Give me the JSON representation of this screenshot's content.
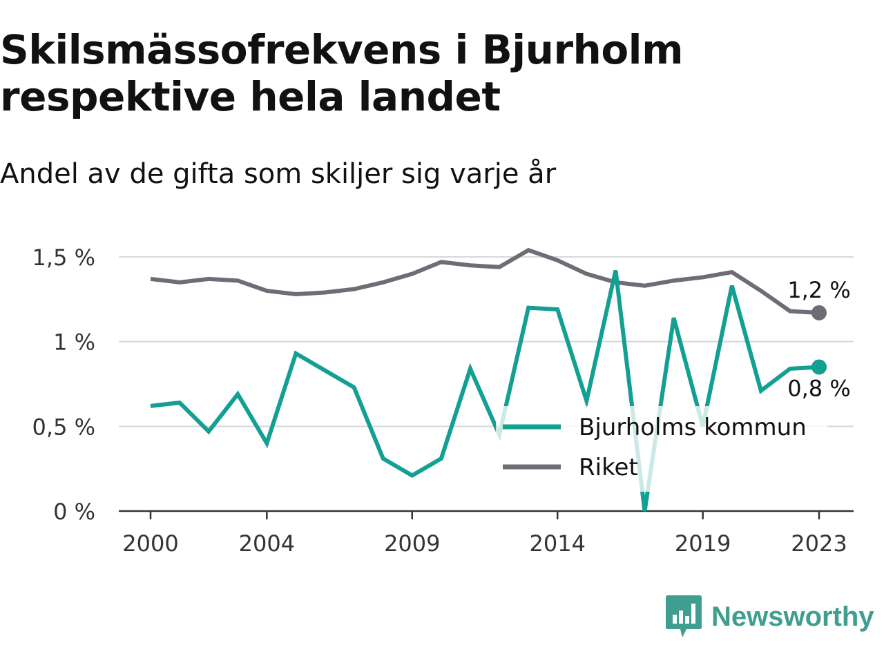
{
  "title": "Skilsmässofrekvens i Bjurholm respektive hela landet",
  "subtitle": "Andel av de gifta som skiljer sig varje år",
  "brand": {
    "name": "Newsworthy",
    "icon": "newsworthy-logo-icon",
    "color": "#3f9e8f"
  },
  "chart_data": {
    "type": "line",
    "x": [
      2000,
      2001,
      2002,
      2003,
      2004,
      2005,
      2006,
      2007,
      2008,
      2009,
      2010,
      2011,
      2012,
      2013,
      2014,
      2015,
      2016,
      2017,
      2018,
      2019,
      2020,
      2021,
      2022,
      2023
    ],
    "x_ticks": [
      2000,
      2004,
      2009,
      2014,
      2019,
      2023
    ],
    "x_tick_labels": [
      "2000",
      "2004",
      "2009",
      "2014",
      "2019",
      "2023"
    ],
    "ylim": [
      0,
      1.5
    ],
    "y_ticks": [
      0,
      0.5,
      1,
      1.5
    ],
    "y_tick_labels": [
      "0 %",
      "0,5 %",
      "1 %",
      "1,5 %"
    ],
    "grid": true,
    "legend_placement": "bottom-right",
    "series": [
      {
        "name": "Bjurholms kommun",
        "color": "#13a093",
        "values": [
          0.62,
          0.64,
          0.47,
          0.69,
          0.4,
          0.93,
          0.83,
          0.73,
          0.31,
          0.21,
          0.31,
          0.84,
          0.45,
          1.2,
          1.19,
          0.65,
          1.42,
          0.0,
          1.14,
          0.5,
          1.33,
          0.71,
          0.84,
          0.85
        ],
        "end_label": "0,8 %"
      },
      {
        "name": "Riket",
        "color": "#6e6d75",
        "values": [
          1.37,
          1.35,
          1.37,
          1.36,
          1.3,
          1.28,
          1.29,
          1.31,
          1.35,
          1.4,
          1.47,
          1.45,
          1.44,
          1.54,
          1.48,
          1.4,
          1.35,
          1.33,
          1.36,
          1.38,
          1.41,
          1.3,
          1.18,
          1.17
        ],
        "end_label": "1,2 %"
      }
    ]
  }
}
